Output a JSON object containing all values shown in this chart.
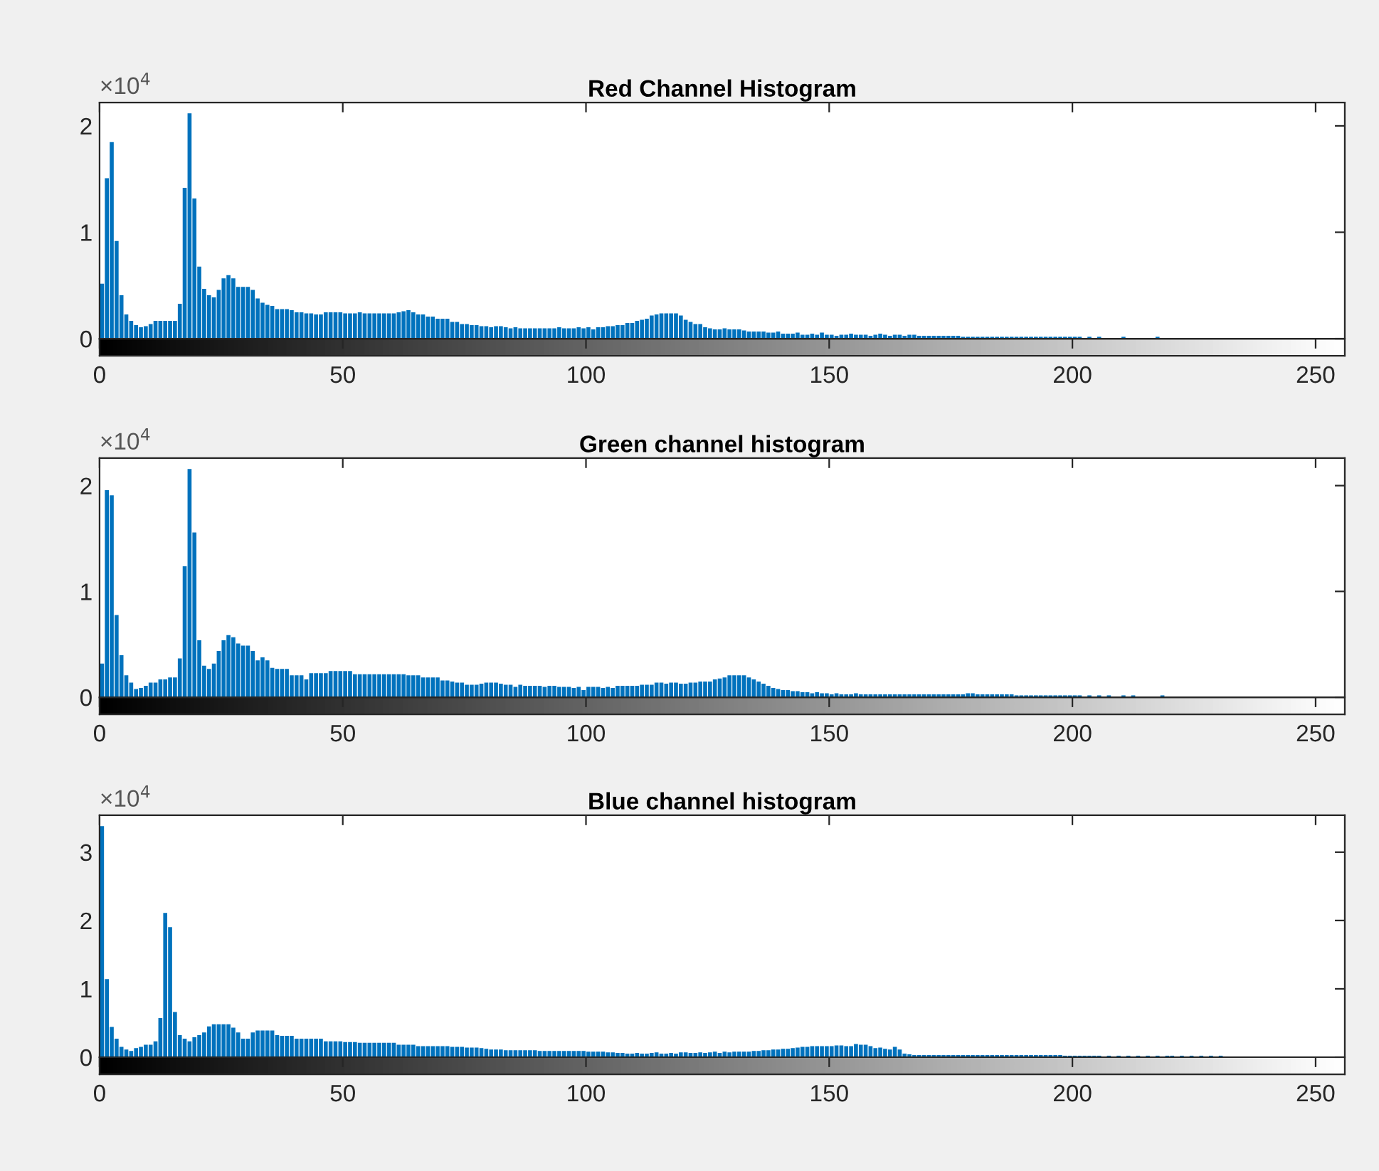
{
  "chart_data": [
    {
      "type": "histogram",
      "title": "Red Channel Histogram",
      "annotations": [
        "×10$^{4}$"
      ],
      "color": "#0072bd",
      "bins": [
        0,
        1,
        2,
        3,
        4,
        5,
        6,
        7,
        8,
        9,
        10,
        11,
        12,
        13,
        14,
        15,
        16,
        17,
        18,
        19,
        20,
        21,
        22,
        23,
        24,
        25,
        26,
        27,
        28,
        29,
        30,
        31,
        32,
        33,
        34,
        35,
        36,
        37,
        38,
        39,
        40,
        41,
        42,
        43,
        44,
        45,
        46,
        47,
        48,
        49,
        50,
        51,
        52,
        53,
        54,
        55,
        56,
        57,
        58,
        59,
        60,
        61,
        62,
        63,
        64,
        65,
        66,
        67,
        68,
        69,
        70,
        71,
        72,
        73,
        74,
        75,
        76,
        77,
        78,
        79,
        80,
        81,
        82,
        83,
        84,
        85,
        86,
        87,
        88,
        89,
        90,
        91,
        92,
        93,
        94,
        95,
        96,
        97,
        98,
        99,
        100,
        101,
        102,
        103,
        104,
        105,
        106,
        107,
        108,
        109,
        110,
        111,
        112,
        113,
        114,
        115,
        116,
        117,
        118,
        119,
        120,
        121,
        122,
        123,
        124,
        125,
        126,
        127,
        128,
        129,
        130,
        131,
        132,
        133,
        134,
        135,
        136,
        137,
        138,
        139,
        140,
        141,
        142,
        143,
        144,
        145,
        146,
        147,
        148,
        149,
        150,
        151,
        152,
        153,
        154,
        155,
        156,
        157,
        158,
        159,
        160,
        161,
        162,
        163,
        164,
        165,
        166,
        167,
        168,
        169,
        170,
        171,
        172,
        173,
        174,
        175,
        176,
        177,
        178,
        179,
        180,
        181,
        182,
        183,
        184,
        185,
        186,
        187,
        188,
        189,
        190,
        191,
        192,
        193,
        194,
        195,
        196,
        197,
        198,
        199,
        200,
        201,
        202,
        203,
        204,
        205,
        206,
        207,
        208,
        209,
        210,
        211,
        212,
        213,
        214,
        215,
        216,
        217,
        218,
        219,
        220,
        221,
        222,
        223,
        224,
        225,
        226,
        227,
        228,
        229,
        230,
        231,
        232,
        233,
        234,
        235,
        236,
        237,
        238,
        239,
        240,
        241,
        242,
        243,
        244,
        245,
        246,
        247,
        248,
        249,
        250,
        251,
        252,
        253,
        254,
        255,
        256
      ],
      "values": [
        0.51,
        1.5,
        1.84,
        0.91,
        0.4,
        0.22,
        0.16,
        0.12,
        0.1,
        0.11,
        0.13,
        0.16,
        0.16,
        0.16,
        0.16,
        0.16,
        0.32,
        1.41,
        2.11,
        1.31,
        0.67,
        0.46,
        0.4,
        0.38,
        0.45,
        0.56,
        0.59,
        0.56,
        0.48,
        0.48,
        0.48,
        0.45,
        0.37,
        0.33,
        0.31,
        0.3,
        0.27,
        0.27,
        0.27,
        0.26,
        0.24,
        0.24,
        0.23,
        0.23,
        0.22,
        0.22,
        0.24,
        0.24,
        0.24,
        0.24,
        0.23,
        0.23,
        0.23,
        0.24,
        0.23,
        0.23,
        0.23,
        0.23,
        0.23,
        0.23,
        0.23,
        0.24,
        0.25,
        0.26,
        0.24,
        0.22,
        0.22,
        0.2,
        0.2,
        0.18,
        0.18,
        0.18,
        0.15,
        0.15,
        0.13,
        0.13,
        0.12,
        0.12,
        0.11,
        0.11,
        0.1,
        0.11,
        0.11,
        0.1,
        0.09,
        0.1,
        0.09,
        0.09,
        0.09,
        0.09,
        0.09,
        0.09,
        0.09,
        0.09,
        0.1,
        0.09,
        0.09,
        0.09,
        0.1,
        0.09,
        0.1,
        0.08,
        0.1,
        0.1,
        0.11,
        0.11,
        0.12,
        0.12,
        0.14,
        0.14,
        0.16,
        0.17,
        0.18,
        0.21,
        0.22,
        0.23,
        0.23,
        0.23,
        0.23,
        0.21,
        0.17,
        0.15,
        0.13,
        0.13,
        0.1,
        0.09,
        0.08,
        0.08,
        0.09,
        0.08,
        0.08,
        0.08,
        0.07,
        0.06,
        0.06,
        0.06,
        0.06,
        0.05,
        0.05,
        0.06,
        0.04,
        0.04,
        0.04,
        0.05,
        0.03,
        0.03,
        0.04,
        0.03,
        0.05,
        0.03,
        0.03,
        0.02,
        0.03,
        0.03,
        0.04,
        0.03,
        0.03,
        0.03,
        0.02,
        0.03,
        0.04,
        0.03,
        0.02,
        0.03,
        0.03,
        0.02,
        0.03,
        0.03,
        0.02,
        0.02,
        0.02,
        0.02,
        0.02,
        0.02,
        0.02,
        0.02,
        0.02,
        0.01,
        0.01,
        0.01,
        0.01,
        0.01,
        0.01,
        0.01,
        0.01,
        0.01,
        0.01,
        0.01,
        0.01,
        0.01,
        0.01,
        0.01,
        0.01,
        0.01,
        0.01,
        0.01,
        0.01,
        0.01,
        0.01,
        0.01,
        0.01,
        0.01,
        0,
        0.01,
        0,
        0.01,
        0,
        0,
        0,
        0,
        0.01,
        0,
        0,
        0,
        0,
        0,
        0,
        0.01,
        0,
        0,
        0,
        0,
        0,
        0,
        0,
        0,
        0,
        0,
        0,
        0,
        0,
        0,
        0,
        0,
        0,
        0,
        0,
        0,
        0,
        0,
        0,
        0,
        0,
        0,
        0,
        0,
        0,
        0,
        0,
        0,
        0,
        0,
        0,
        0,
        0,
        0
      ],
      "xlim": [
        0,
        256
      ],
      "xticks": [
        0,
        50,
        100,
        150,
        200,
        250
      ],
      "ylim": [
        0,
        2.22
      ],
      "yticks": [
        0,
        1,
        2
      ]
    },
    {
      "type": "histogram",
      "title": "Green channel histogram",
      "annotations": [
        "×10$^{4}$"
      ],
      "color": "#0072bd",
      "bins": [
        0,
        1,
        2,
        3,
        4,
        5,
        6,
        7,
        8,
        9,
        10,
        11,
        12,
        13,
        14,
        15,
        16,
        17,
        18,
        19,
        20,
        21,
        22,
        23,
        24,
        25,
        26,
        27,
        28,
        29,
        30,
        31,
        32,
        33,
        34,
        35,
        36,
        37,
        38,
        39,
        40,
        41,
        42,
        43,
        44,
        45,
        46,
        47,
        48,
        49,
        50,
        51,
        52,
        53,
        54,
        55,
        56,
        57,
        58,
        59,
        60,
        61,
        62,
        63,
        64,
        65,
        66,
        67,
        68,
        69,
        70,
        71,
        72,
        73,
        74,
        75,
        76,
        77,
        78,
        79,
        80,
        81,
        82,
        83,
        84,
        85,
        86,
        87,
        88,
        89,
        90,
        91,
        92,
        93,
        94,
        95,
        96,
        97,
        98,
        99,
        100,
        101,
        102,
        103,
        104,
        105,
        106,
        107,
        108,
        109,
        110,
        111,
        112,
        113,
        114,
        115,
        116,
        117,
        118,
        119,
        120,
        121,
        122,
        123,
        124,
        125,
        126,
        127,
        128,
        129,
        130,
        131,
        132,
        133,
        134,
        135,
        136,
        137,
        138,
        139,
        140,
        141,
        142,
        143,
        144,
        145,
        146,
        147,
        148,
        149,
        150,
        151,
        152,
        153,
        154,
        155,
        156,
        157,
        158,
        159,
        160,
        161,
        162,
        163,
        164,
        165,
        166,
        167,
        168,
        169,
        170,
        171,
        172,
        173,
        174,
        175,
        176,
        177,
        178,
        179,
        180,
        181,
        182,
        183,
        184,
        185,
        186,
        187,
        188,
        189,
        190,
        191,
        192,
        193,
        194,
        195,
        196,
        197,
        198,
        199,
        200,
        201,
        202,
        203,
        204,
        205,
        206,
        207,
        208,
        209,
        210,
        211,
        212,
        213,
        214,
        215,
        216,
        217,
        218,
        219,
        220,
        221,
        222,
        223,
        224,
        225,
        226,
        227,
        228,
        229,
        230,
        231,
        232,
        233,
        234,
        235,
        236,
        237,
        238,
        239,
        240,
        241,
        242,
        243,
        244,
        245,
        246,
        247,
        248,
        249,
        250,
        251,
        252,
        253,
        254,
        255,
        256
      ],
      "values": [
        0.31,
        1.95,
        1.9,
        0.77,
        0.39,
        0.2,
        0.13,
        0.07,
        0.08,
        0.1,
        0.13,
        0.13,
        0.16,
        0.16,
        0.18,
        0.18,
        0.36,
        1.23,
        2.15,
        1.55,
        0.53,
        0.29,
        0.26,
        0.31,
        0.43,
        0.53,
        0.58,
        0.56,
        0.5,
        0.48,
        0.48,
        0.43,
        0.34,
        0.37,
        0.34,
        0.27,
        0.26,
        0.26,
        0.26,
        0.2,
        0.2,
        0.2,
        0.16,
        0.22,
        0.22,
        0.22,
        0.22,
        0.24,
        0.24,
        0.24,
        0.24,
        0.24,
        0.21,
        0.21,
        0.21,
        0.21,
        0.21,
        0.21,
        0.21,
        0.21,
        0.21,
        0.21,
        0.21,
        0.2,
        0.2,
        0.2,
        0.18,
        0.18,
        0.18,
        0.18,
        0.15,
        0.15,
        0.14,
        0.13,
        0.13,
        0.11,
        0.11,
        0.11,
        0.12,
        0.13,
        0.13,
        0.13,
        0.12,
        0.11,
        0.11,
        0.09,
        0.11,
        0.1,
        0.1,
        0.1,
        0.1,
        0.09,
        0.1,
        0.1,
        0.09,
        0.09,
        0.09,
        0.08,
        0.09,
        0.06,
        0.09,
        0.09,
        0.09,
        0.08,
        0.09,
        0.08,
        0.1,
        0.1,
        0.1,
        0.1,
        0.1,
        0.11,
        0.11,
        0.11,
        0.13,
        0.13,
        0.12,
        0.13,
        0.13,
        0.12,
        0.12,
        0.13,
        0.13,
        0.14,
        0.14,
        0.14,
        0.16,
        0.17,
        0.18,
        0.2,
        0.2,
        0.2,
        0.2,
        0.18,
        0.16,
        0.14,
        0.12,
        0.1,
        0.08,
        0.07,
        0.06,
        0.06,
        0.05,
        0.05,
        0.04,
        0.04,
        0.03,
        0.04,
        0.03,
        0.03,
        0.02,
        0.03,
        0.02,
        0.02,
        0.02,
        0.03,
        0.02,
        0.02,
        0.02,
        0.02,
        0.02,
        0.02,
        0.02,
        0.02,
        0.02,
        0.02,
        0.02,
        0.02,
        0.02,
        0.02,
        0.02,
        0.02,
        0.02,
        0.02,
        0.02,
        0.02,
        0.02,
        0.02,
        0.03,
        0.03,
        0.02,
        0.02,
        0.02,
        0.02,
        0.02,
        0.02,
        0.02,
        0.02,
        0.01,
        0.01,
        0.01,
        0.01,
        0.01,
        0.01,
        0.01,
        0.01,
        0.01,
        0.01,
        0.01,
        0.01,
        0.01,
        0.01,
        0,
        0.01,
        0,
        0.01,
        0,
        0.01,
        0,
        0,
        0.01,
        0,
        0.01,
        0,
        0,
        0,
        0,
        0,
        0.01,
        0,
        0,
        0,
        0,
        0,
        0,
        0,
        0,
        0,
        0,
        0,
        0,
        0,
        0,
        0,
        0,
        0,
        0,
        0,
        0,
        0,
        0,
        0,
        0,
        0,
        0,
        0,
        0,
        0,
        0,
        0,
        0,
        0,
        0,
        0,
        0,
        0
      ],
      "xlim": [
        0,
        256
      ],
      "xticks": [
        0,
        50,
        100,
        150,
        200,
        250
      ],
      "ylim": [
        0,
        2.26
      ],
      "yticks": [
        0,
        1,
        2
      ]
    },
    {
      "type": "histogram",
      "title": "Blue channel histogram",
      "annotations": [
        "×10$^{4}$"
      ],
      "color": "#0072bd",
      "bins": [
        0,
        1,
        2,
        3,
        4,
        5,
        6,
        7,
        8,
        9,
        10,
        11,
        12,
        13,
        14,
        15,
        16,
        17,
        18,
        19,
        20,
        21,
        22,
        23,
        24,
        25,
        26,
        27,
        28,
        29,
        30,
        31,
        32,
        33,
        34,
        35,
        36,
        37,
        38,
        39,
        40,
        41,
        42,
        43,
        44,
        45,
        46,
        47,
        48,
        49,
        50,
        51,
        52,
        53,
        54,
        55,
        56,
        57,
        58,
        59,
        60,
        61,
        62,
        63,
        64,
        65,
        66,
        67,
        68,
        69,
        70,
        71,
        72,
        73,
        74,
        75,
        76,
        77,
        78,
        79,
        80,
        81,
        82,
        83,
        84,
        85,
        86,
        87,
        88,
        89,
        90,
        91,
        92,
        93,
        94,
        95,
        96,
        97,
        98,
        99,
        100,
        101,
        102,
        103,
        104,
        105,
        106,
        107,
        108,
        109,
        110,
        111,
        112,
        113,
        114,
        115,
        116,
        117,
        118,
        119,
        120,
        121,
        122,
        123,
        124,
        125,
        126,
        127,
        128,
        129,
        130,
        131,
        132,
        133,
        134,
        135,
        136,
        137,
        138,
        139,
        140,
        141,
        142,
        143,
        144,
        145,
        146,
        147,
        148,
        149,
        150,
        151,
        152,
        153,
        154,
        155,
        156,
        157,
        158,
        159,
        160,
        161,
        162,
        163,
        164,
        165,
        166,
        167,
        168,
        169,
        170,
        171,
        172,
        173,
        174,
        175,
        176,
        177,
        178,
        179,
        180,
        181,
        182,
        183,
        184,
        185,
        186,
        187,
        188,
        189,
        190,
        191,
        192,
        193,
        194,
        195,
        196,
        197,
        198,
        199,
        200,
        201,
        202,
        203,
        204,
        205,
        206,
        207,
        208,
        209,
        210,
        211,
        212,
        213,
        214,
        215,
        216,
        217,
        218,
        219,
        220,
        221,
        222,
        223,
        224,
        225,
        226,
        227,
        228,
        229,
        230,
        231,
        232,
        233,
        234,
        235,
        236,
        237,
        238,
        239,
        240,
        241,
        242,
        243,
        244,
        245,
        246,
        247,
        248,
        249,
        250,
        251,
        252,
        253,
        254,
        255,
        256
      ],
      "values": [
        3.37,
        1.13,
        0.43,
        0.26,
        0.14,
        0.1,
        0.08,
        0.12,
        0.14,
        0.17,
        0.17,
        0.22,
        0.56,
        2.1,
        1.89,
        0.65,
        0.31,
        0.26,
        0.22,
        0.28,
        0.31,
        0.35,
        0.44,
        0.47,
        0.47,
        0.47,
        0.47,
        0.42,
        0.35,
        0.26,
        0.26,
        0.35,
        0.38,
        0.38,
        0.38,
        0.38,
        0.31,
        0.3,
        0.3,
        0.3,
        0.26,
        0.26,
        0.26,
        0.26,
        0.26,
        0.26,
        0.22,
        0.22,
        0.22,
        0.22,
        0.21,
        0.21,
        0.21,
        0.2,
        0.2,
        0.2,
        0.2,
        0.2,
        0.2,
        0.2,
        0.2,
        0.17,
        0.17,
        0.17,
        0.17,
        0.15,
        0.15,
        0.15,
        0.15,
        0.15,
        0.15,
        0.15,
        0.14,
        0.14,
        0.14,
        0.13,
        0.13,
        0.13,
        0.12,
        0.11,
        0.1,
        0.1,
        0.1,
        0.09,
        0.09,
        0.09,
        0.09,
        0.09,
        0.09,
        0.09,
        0.08,
        0.08,
        0.08,
        0.08,
        0.08,
        0.08,
        0.08,
        0.08,
        0.08,
        0.08,
        0.07,
        0.07,
        0.07,
        0.07,
        0.06,
        0.06,
        0.05,
        0.05,
        0.04,
        0.04,
        0.05,
        0.04,
        0.04,
        0.05,
        0.06,
        0.04,
        0.04,
        0.05,
        0.04,
        0.06,
        0.06,
        0.05,
        0.05,
        0.06,
        0.05,
        0.06,
        0.07,
        0.05,
        0.07,
        0.06,
        0.07,
        0.07,
        0.07,
        0.07,
        0.08,
        0.08,
        0.09,
        0.09,
        0.1,
        0.1,
        0.11,
        0.11,
        0.12,
        0.13,
        0.14,
        0.14,
        0.15,
        0.15,
        0.15,
        0.15,
        0.15,
        0.16,
        0.16,
        0.15,
        0.15,
        0.18,
        0.17,
        0.17,
        0.15,
        0.12,
        0.13,
        0.11,
        0.1,
        0.14,
        0.1,
        0.04,
        0.03,
        0.02,
        0.02,
        0.02,
        0.02,
        0.02,
        0.02,
        0.02,
        0.02,
        0.02,
        0.02,
        0.02,
        0.02,
        0.02,
        0.02,
        0.02,
        0.02,
        0.02,
        0.02,
        0.02,
        0.02,
        0.02,
        0.02,
        0.02,
        0.02,
        0.02,
        0.02,
        0.02,
        0.02,
        0.02,
        0.02,
        0.02,
        0.01,
        0.01,
        0.01,
        0.01,
        0.01,
        0.01,
        0.01,
        0.01,
        0,
        0.01,
        0,
        0.01,
        0,
        0.01,
        0,
        0.01,
        0,
        0.01,
        0,
        0.01,
        0,
        0.01,
        0.01,
        0,
        0.01,
        0,
        0.01,
        0,
        0.01,
        0,
        0.01,
        0,
        0.01,
        0,
        0,
        0,
        0,
        0,
        0,
        0,
        0,
        0,
        0,
        0,
        0,
        0,
        0,
        0,
        0,
        0,
        0,
        0,
        0,
        0,
        0,
        0,
        0,
        0
      ],
      "xlim": [
        0,
        256
      ],
      "xticks": [
        0,
        50,
        100,
        150,
        200,
        250
      ],
      "ylim": [
        0,
        3.54
      ],
      "yticks": [
        0,
        1,
        2,
        3
      ]
    }
  ]
}
